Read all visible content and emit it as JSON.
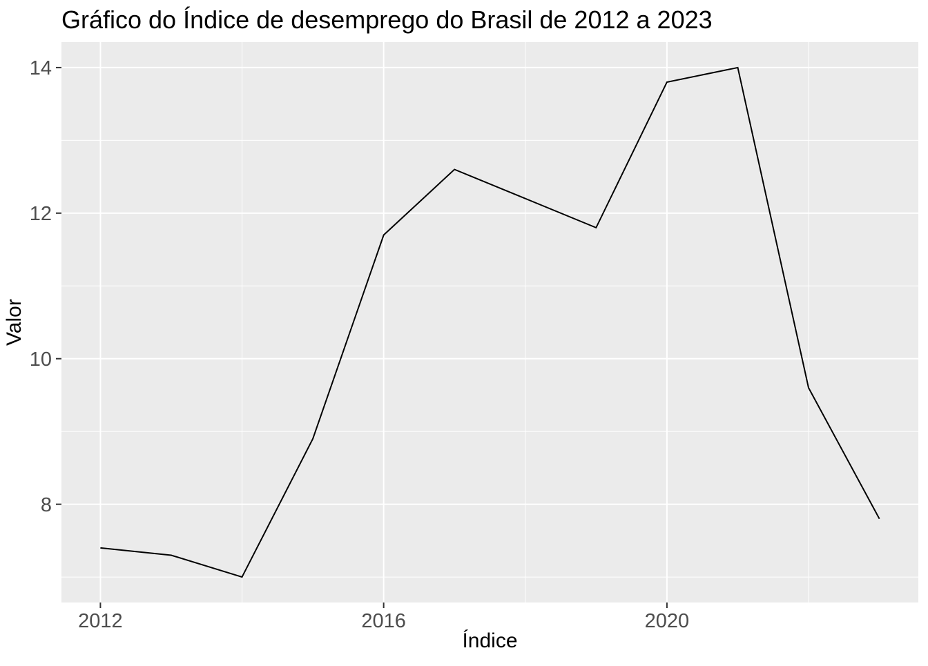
{
  "chart_data": {
    "type": "line",
    "title": "Gráfico do Índice de desemprego do Brasil de 2012 a 2023",
    "xlabel": "Índice",
    "ylabel": "Valor",
    "x": [
      2012,
      2013,
      2014,
      2015,
      2016,
      2017,
      2018,
      2019,
      2020,
      2021,
      2022,
      2023
    ],
    "series": [
      {
        "name": "Índice de desemprego",
        "values": [
          7.4,
          7.3,
          7.0,
          8.9,
          11.7,
          12.6,
          12.2,
          11.8,
          13.8,
          14.0,
          9.6,
          7.8
        ]
      }
    ],
    "xlim": [
      2011.45,
      2023.55
    ],
    "ylim": [
      6.65,
      14.35
    ],
    "x_ticks": [
      2012,
      2016,
      2020
    ],
    "y_ticks": [
      8,
      10,
      12,
      14
    ],
    "x_minor_ticks": [
      2014,
      2018,
      2022
    ],
    "y_minor_ticks": [
      7,
      9,
      11,
      13
    ],
    "grid": "on",
    "legend_position": "none",
    "colors": {
      "figure_background": "#FFFFFF",
      "panel_background": "#EBEBEB",
      "gridline": "#FFFFFF",
      "data_line": "#000000",
      "tick_label": "#4D4D4D",
      "tick_mark": "#333333",
      "title_text": "#000000"
    }
  }
}
